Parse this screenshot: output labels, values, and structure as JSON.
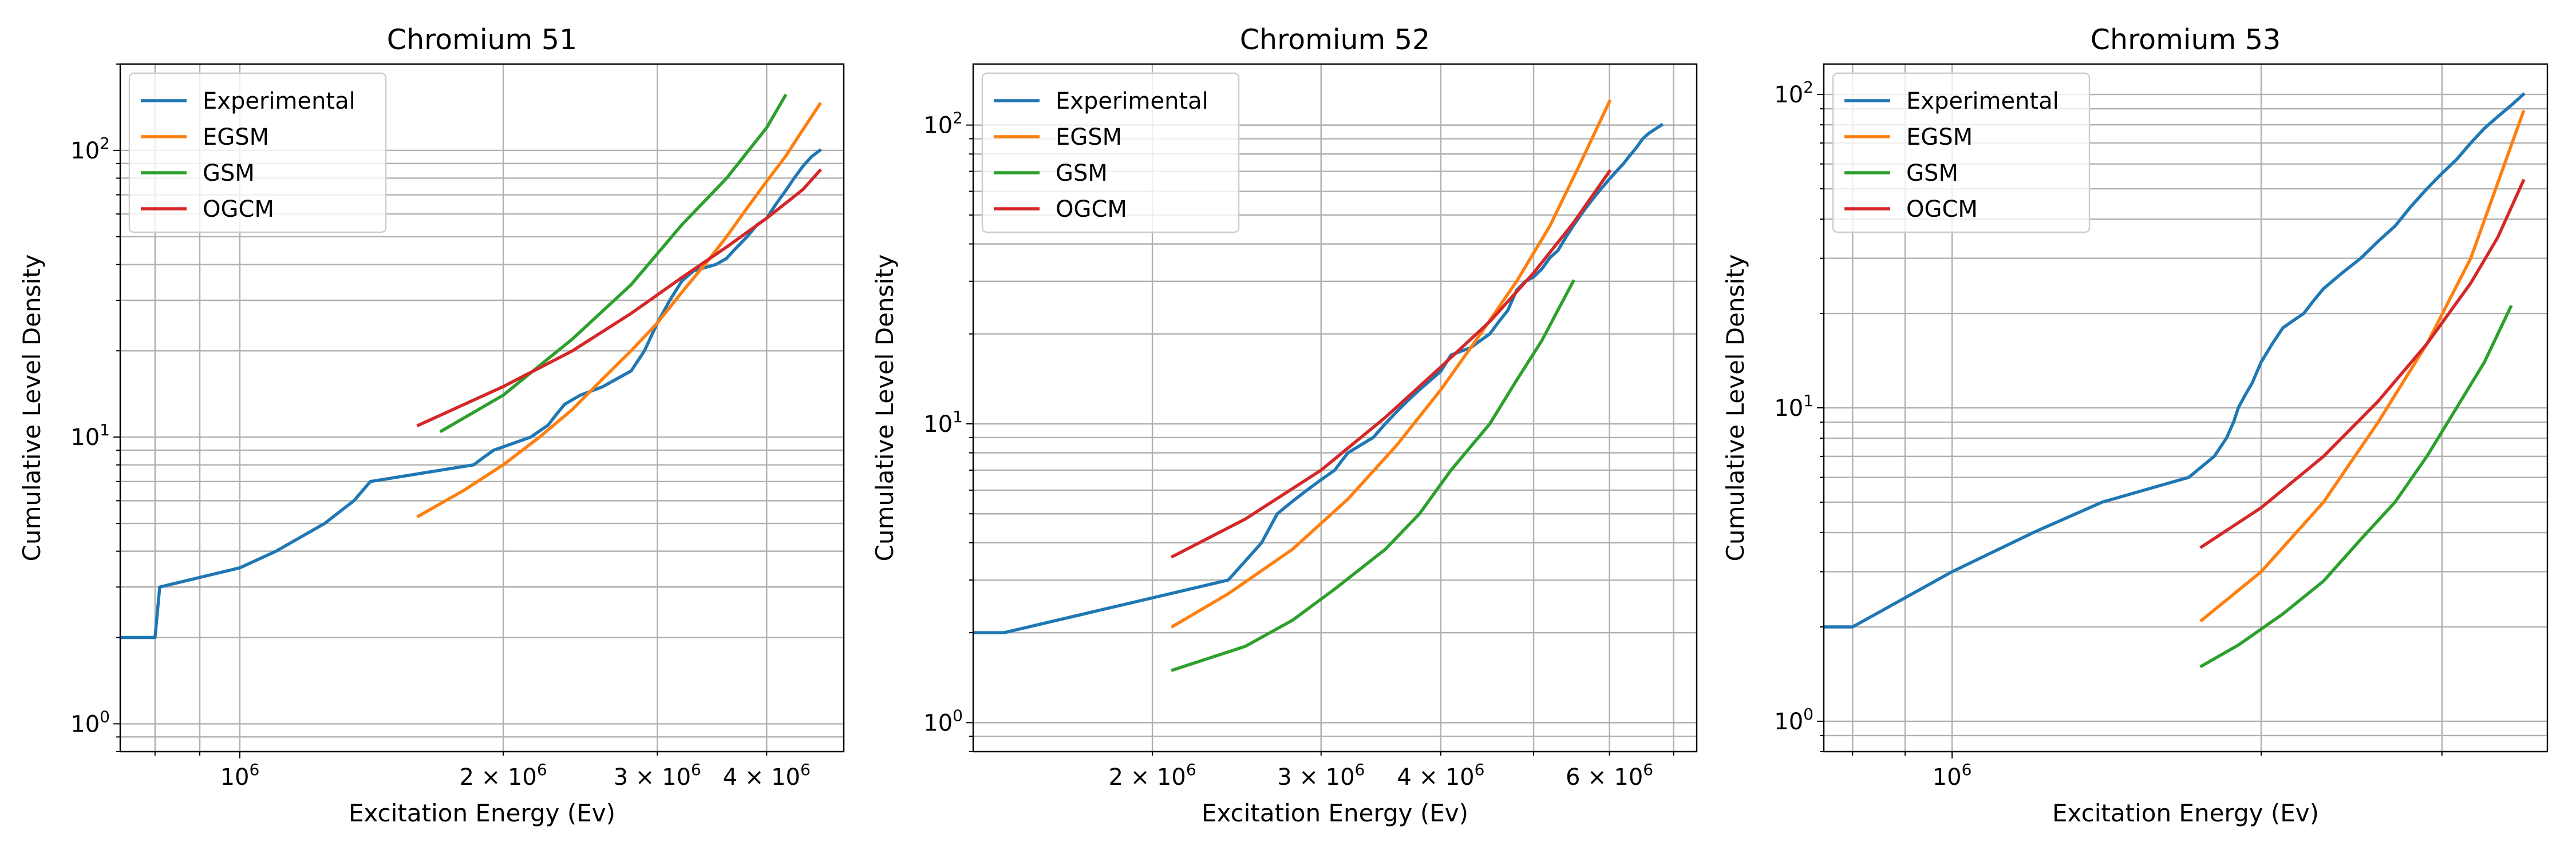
{
  "colors": {
    "Experimental": "#1f77b4",
    "EGSM": "#ff7f0e",
    "GSM": "#2ca02c",
    "OGCM": "#d62728",
    "grid": "#b0b0b0"
  },
  "chart_data": [
    {
      "type": "line",
      "title": "Chromium 51",
      "xlabel": "Excitation Energy (Ev)",
      "ylabel": "Cumulative Level Density",
      "xscale": "log",
      "yscale": "log",
      "xlim": [
        730000,
        4900000
      ],
      "ylim": [
        0.8,
        200
      ],
      "grid": true,
      "grid_minor": true,
      "legend_loc": "upper left",
      "xticks": [
        {
          "v": 1000000,
          "m": "10",
          "e": "6"
        },
        {
          "v": 2000000,
          "m": "2 × 10",
          "e": "6"
        },
        {
          "v": 3000000,
          "m": "3 × 10",
          "e": "6"
        },
        {
          "v": 4000000,
          "m": "4 × 10",
          "e": "6"
        }
      ],
      "yticks": [
        {
          "v": 1,
          "m": "10",
          "e": "0"
        },
        {
          "v": 10,
          "m": "10",
          "e": "1"
        },
        {
          "v": 100,
          "m": "10",
          "e": "2"
        }
      ],
      "series": [
        {
          "name": "Experimental",
          "x": [
            730000,
            800000,
            810000,
            1000000,
            1100000,
            1250000,
            1350000,
            1410000,
            1850000,
            1900000,
            1950000,
            2150000,
            2250000,
            2300000,
            2350000,
            2400000,
            2450000,
            2600000,
            2700000,
            2800000,
            2900000,
            3000000,
            3100000,
            3200000,
            3300000,
            3400000,
            3500000,
            3550000,
            3600000,
            3650000,
            3700000,
            3800000,
            3900000,
            4000000,
            4100000,
            4200000,
            4300000,
            4400000,
            4500000,
            4600000
          ],
          "y": [
            2,
            2,
            3,
            3.5,
            4,
            5,
            6,
            7,
            8,
            8.5,
            9,
            10,
            11,
            12,
            13,
            13.5,
            14,
            15,
            16,
            17,
            20,
            25,
            30,
            35,
            38,
            39,
            40,
            41,
            42,
            44,
            46,
            50,
            55,
            58,
            65,
            72,
            80,
            88,
            95,
            100
          ]
        },
        {
          "name": "EGSM",
          "x": [
            1600000,
            1800000,
            2000000,
            2200000,
            2400000,
            2600000,
            2800000,
            3000000,
            3200000,
            3400000,
            3600000,
            3800000,
            4000000,
            4200000,
            4400000,
            4600000
          ],
          "y": [
            5.3,
            6.5,
            8,
            10,
            12.5,
            16,
            20,
            25,
            32,
            40,
            50,
            63,
            78,
            95,
            118,
            145
          ]
        },
        {
          "name": "GSM",
          "x": [
            1700000,
            2000000,
            2400000,
            2800000,
            3200000,
            3600000,
            4000000,
            4200000
          ],
          "y": [
            10.5,
            14,
            22,
            34,
            55,
            80,
            120,
            155
          ]
        },
        {
          "name": "OGCM",
          "x": [
            1600000,
            2000000,
            2400000,
            2800000,
            3200000,
            3600000,
            4000000,
            4400000,
            4600000
          ],
          "y": [
            11,
            15,
            20,
            27,
            36,
            46,
            58,
            73,
            85
          ]
        }
      ]
    },
    {
      "type": "line",
      "title": "Chromium 52",
      "xlabel": "Excitation Energy (Ev)",
      "ylabel": "Cumulative Level Density",
      "xscale": "log",
      "yscale": "log",
      "xlim": [
        1300000,
        7400000
      ],
      "ylim": [
        0.8,
        160
      ],
      "grid": true,
      "grid_minor": true,
      "legend_loc": "upper left",
      "xticks": [
        {
          "v": 2000000,
          "m": "2 × 10",
          "e": "6"
        },
        {
          "v": 3000000,
          "m": "3 × 10",
          "e": "6"
        },
        {
          "v": 4000000,
          "m": "4 × 10",
          "e": "6"
        },
        {
          "v": 6000000,
          "m": "6 × 10",
          "e": "6"
        }
      ],
      "yticks": [
        {
          "v": 1,
          "m": "10",
          "e": "0"
        },
        {
          "v": 10,
          "m": "10",
          "e": "1"
        },
        {
          "v": 100,
          "m": "10",
          "e": "2"
        }
      ],
      "series": [
        {
          "name": "Experimental",
          "x": [
            1300000,
            1400000,
            2400000,
            2600000,
            2700000,
            2800000,
            2900000,
            3000000,
            3100000,
            3150000,
            3200000,
            3400000,
            3500000,
            3600000,
            3700000,
            3800000,
            4000000,
            4100000,
            4300000,
            4400000,
            4500000,
            4600000,
            4700000,
            4800000,
            4900000,
            5000000,
            5100000,
            5200000,
            5300000,
            5400000,
            5500000,
            5600000,
            5700000,
            5800000,
            5900000,
            6000000,
            6100000,
            6200000,
            6300000,
            6400000,
            6500000,
            6600000,
            6700000,
            6800000
          ],
          "y": [
            2,
            2,
            3,
            4,
            5,
            5.5,
            6,
            6.5,
            7,
            7.5,
            8,
            9,
            10,
            11,
            12,
            13,
            15,
            17,
            18,
            19,
            20,
            22,
            24,
            28,
            30,
            31,
            33,
            36,
            38,
            42,
            46,
            50,
            54,
            58,
            62,
            66,
            70,
            74,
            79,
            84,
            90,
            94,
            97,
            100
          ]
        },
        {
          "name": "EGSM",
          "x": [
            2100000,
            2400000,
            2800000,
            3200000,
            3600000,
            4000000,
            4400000,
            4800000,
            5200000,
            5600000,
            6000000
          ],
          "y": [
            2.1,
            2.7,
            3.8,
            5.6,
            8.5,
            13,
            20,
            30,
            46,
            75,
            120
          ]
        },
        {
          "name": "GSM",
          "x": [
            2100000,
            2500000,
            2800000,
            3100000,
            3500000,
            3800000,
            4100000,
            4500000,
            4800000,
            5100000,
            5300000,
            5500000
          ],
          "y": [
            1.5,
            1.8,
            2.2,
            2.8,
            3.8,
            5,
            7,
            10,
            14,
            19,
            24,
            30
          ]
        },
        {
          "name": "OGCM",
          "x": [
            2100000,
            2500000,
            3000000,
            3500000,
            4000000,
            4500000,
            5000000,
            5500000,
            6000000
          ],
          "y": [
            3.6,
            4.8,
            7,
            10.5,
            15.5,
            22,
            32,
            47,
            70
          ]
        }
      ]
    },
    {
      "type": "line",
      "title": "Chromium 53",
      "xlabel": "Excitation Energy (Ev)",
      "ylabel": "Cumulative Level Density",
      "xscale": "log",
      "yscale": "log",
      "xlim": [
        750000,
        3800000
      ],
      "ylim": [
        0.8,
        125
      ],
      "grid": true,
      "grid_minor": true,
      "legend_loc": "upper left",
      "xticks": [
        {
          "v": 1000000,
          "m": "10",
          "e": "6"
        }
      ],
      "yticks": [
        {
          "v": 1,
          "m": "10",
          "e": "0"
        },
        {
          "v": 10,
          "m": "10",
          "e": "1"
        },
        {
          "v": 100,
          "m": "10",
          "e": "2"
        }
      ],
      "series": [
        {
          "name": "Experimental",
          "x": [
            750000,
            800000,
            1000000,
            1200000,
            1400000,
            1700000,
            1800000,
            1850000,
            1880000,
            1900000,
            1930000,
            1960000,
            2000000,
            2050000,
            2100000,
            2150000,
            2200000,
            2250000,
            2300000,
            2400000,
            2500000,
            2600000,
            2700000,
            2800000,
            2900000,
            3000000,
            3100000,
            3200000,
            3300000,
            3400000,
            3500000,
            3600000
          ],
          "y": [
            2,
            2,
            3,
            4,
            5,
            6,
            7,
            8,
            9,
            10,
            11,
            12,
            14,
            16,
            18,
            19,
            20,
            22,
            24,
            27,
            30,
            34,
            38,
            44,
            50,
            56,
            62,
            70,
            78,
            85,
            92,
            100
          ]
        },
        {
          "name": "EGSM",
          "x": [
            1750000,
            2000000,
            2300000,
            2600000,
            2900000,
            3200000,
            3600000
          ],
          "y": [
            2.1,
            3,
            5,
            9,
            16,
            30,
            88
          ]
        },
        {
          "name": "GSM",
          "x": [
            1750000,
            1900000,
            2100000,
            2300000,
            2500000,
            2700000,
            2900000,
            3100000,
            3300000,
            3500000
          ],
          "y": [
            1.5,
            1.75,
            2.2,
            2.8,
            3.8,
            5,
            7,
            10,
            14,
            21
          ]
        },
        {
          "name": "OGCM",
          "x": [
            1750000,
            2000000,
            2300000,
            2600000,
            2900000,
            3200000,
            3400000,
            3600000
          ],
          "y": [
            3.6,
            4.8,
            7,
            10.5,
            16,
            25,
            35,
            53
          ]
        }
      ]
    }
  ]
}
